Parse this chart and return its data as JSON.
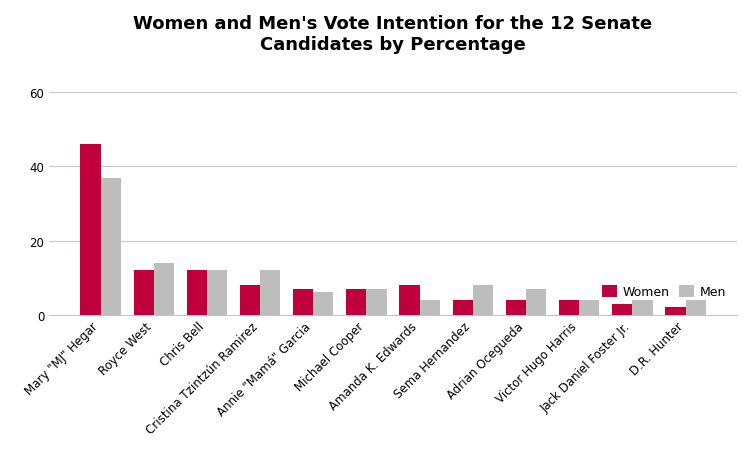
{
  "title": "Women and Men's Vote Intention for the 12 Senate\nCandidates by Percentage",
  "candidates": [
    "Mary \"MJ\" Hegar",
    "Royce West",
    "Chris Bell",
    "Cristina Tzintzún Ramirez",
    "Annie \"Mamá\" Garcia",
    "Michael Cooper",
    "Amanda K. Edwards",
    "Sema Hernandez",
    "Adrian Ocegueda",
    "Victor Hugo Harris",
    "Jack Daniel Foster Jr.",
    "D.R. Hunter"
  ],
  "women": [
    46,
    12,
    12,
    8,
    7,
    7,
    8,
    4,
    4,
    4,
    3,
    2
  ],
  "men": [
    37,
    14,
    12,
    12,
    6,
    7,
    4,
    8,
    7,
    4,
    4,
    4
  ],
  "women_color": "#C0003C",
  "men_color": "#BDBDBD",
  "background_color": "#FFFFFF",
  "yticks": [
    0,
    20,
    40,
    60
  ],
  "ylim": [
    0,
    68
  ],
  "legend_labels": [
    "Women",
    "Men"
  ],
  "title_fontsize": 13,
  "tick_fontsize": 8.5,
  "legend_fontsize": 9,
  "bar_width": 0.38
}
